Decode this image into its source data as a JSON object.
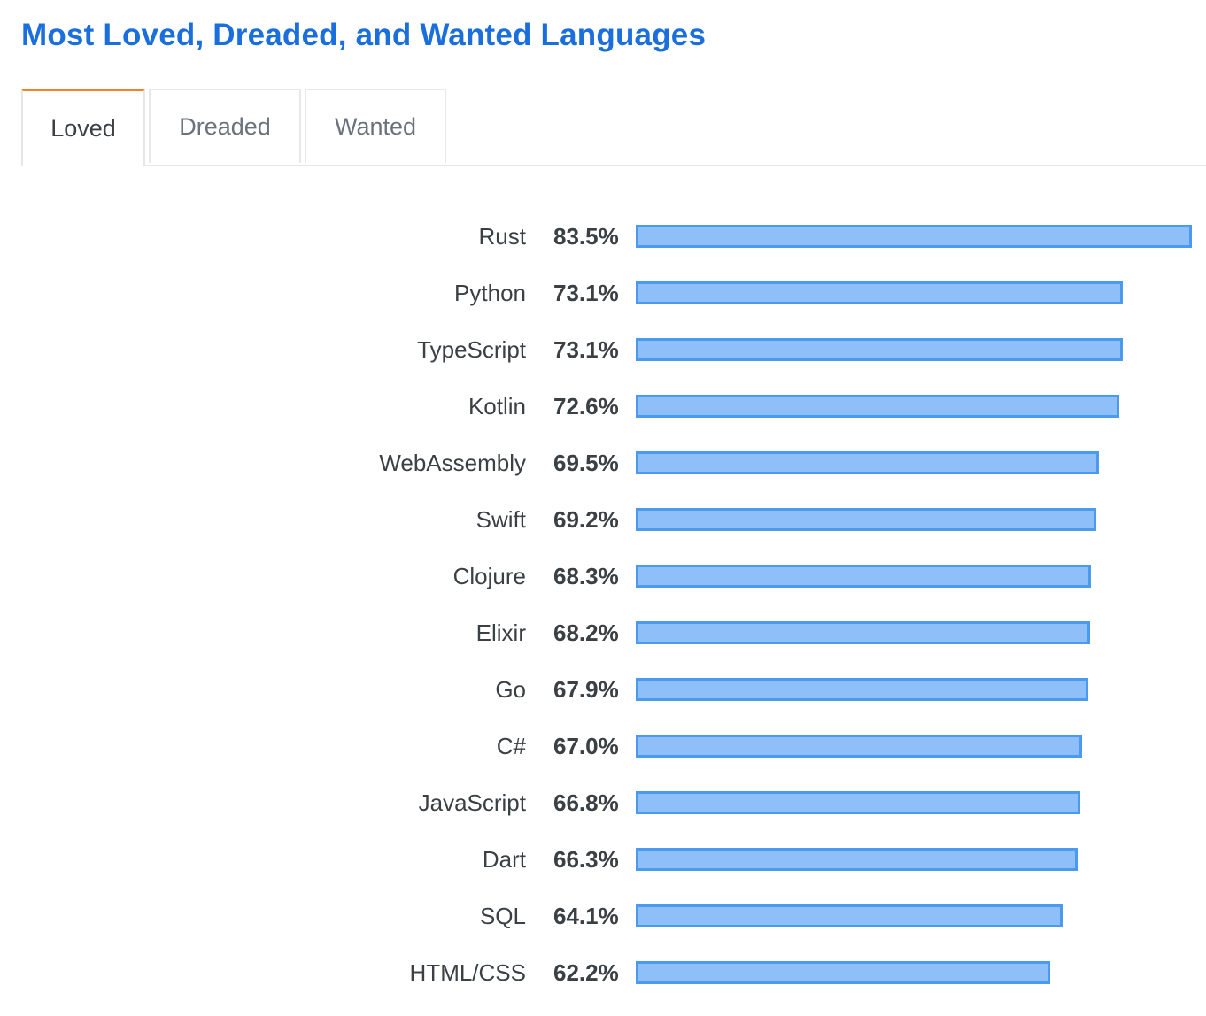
{
  "header": {
    "title": "Most Loved, Dreaded, and Wanted Languages"
  },
  "tabs": [
    {
      "label": "Loved",
      "active": true
    },
    {
      "label": "Dreaded",
      "active": false
    },
    {
      "label": "Wanted",
      "active": false
    }
  ],
  "colors": {
    "title": "#1a6fdc",
    "active_tab_accent": "#f48024",
    "bar_fill": "#8fbff8",
    "bar_border": "#4a9af0"
  },
  "chart_data": {
    "type": "bar",
    "orientation": "horizontal",
    "title": "",
    "xlabel": "",
    "ylabel": "",
    "categories": [
      "Rust",
      "Python",
      "TypeScript",
      "Kotlin",
      "WebAssembly",
      "Swift",
      "Clojure",
      "Elixir",
      "Go",
      "C#",
      "JavaScript",
      "Dart",
      "SQL",
      "HTML/CSS"
    ],
    "values": [
      83.5,
      73.1,
      73.1,
      72.6,
      69.5,
      69.2,
      68.3,
      68.2,
      67.9,
      67.0,
      66.8,
      66.3,
      64.1,
      62.2
    ],
    "value_labels": [
      "83.5%",
      "73.1%",
      "73.1%",
      "72.6%",
      "69.5%",
      "69.2%",
      "68.3%",
      "68.2%",
      "67.9%",
      "67.0%",
      "66.8%",
      "66.3%",
      "64.1%",
      "62.2%"
    ],
    "xlim": [
      0,
      83.5
    ],
    "grid": false,
    "legend": false
  }
}
